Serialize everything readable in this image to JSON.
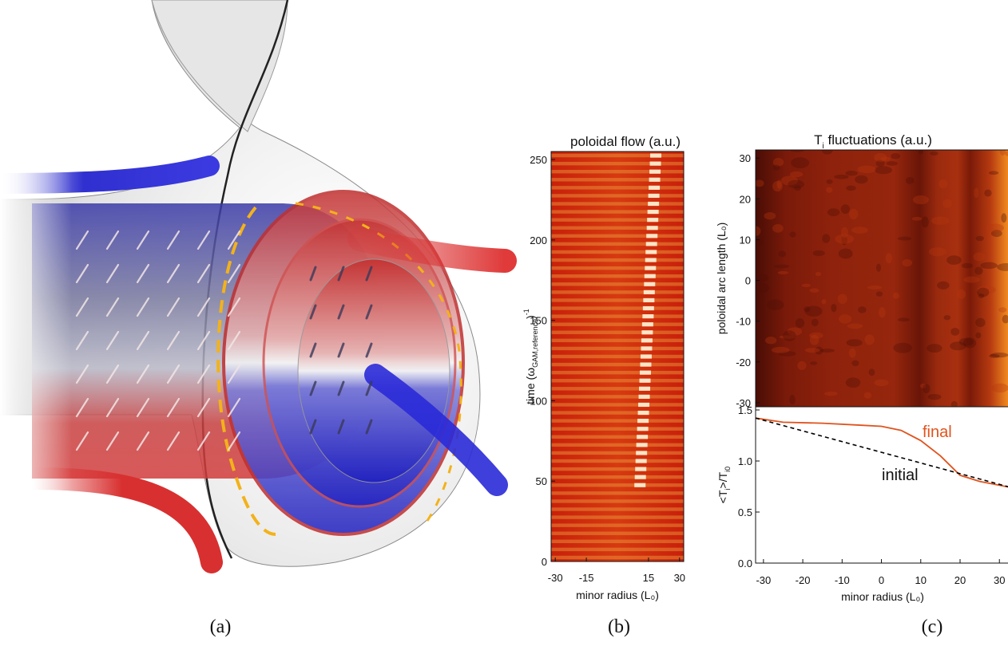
{
  "captions": {
    "a": "(a)",
    "b": "(b)",
    "c": "(c)"
  },
  "chart_data": [
    {
      "type": "heatmap",
      "title": "poloidal flow (a.u.)",
      "xlabel": "minor radius (L₀)",
      "ylabel": "time (ω",
      "ylabel_sub": "GAM,reference",
      "ylabel_tail": ")",
      "ylabel_sup": "-1",
      "xlim": [
        -32,
        32
      ],
      "ylim": [
        0,
        255
      ],
      "xticks": [
        -30,
        -15,
        15,
        30
      ],
      "yticks": [
        0,
        50,
        100,
        150,
        200,
        250
      ],
      "stripe_period": 5
    },
    {
      "type": "heatmap",
      "title": "T",
      "title_sub": "i",
      "title_tail": " fluctuations (a.u.)",
      "ylabel": "poloidal arc length (L₀)",
      "xlim": [
        -32,
        33
      ],
      "ylim": [
        -31,
        32
      ],
      "yticks": [
        30,
        20,
        10,
        0,
        -10,
        -20,
        -30
      ]
    },
    {
      "type": "line",
      "ylabel": "<T",
      "ylabel_sub1": "i",
      "ylabel_mid": ">/T",
      "ylabel_sub2": "i0",
      "xlabel": "minor radius (L₀)",
      "xlim": [
        -32,
        33
      ],
      "ylim": [
        0,
        1.5
      ],
      "xticks": [
        -30,
        -20,
        -10,
        0,
        10,
        20,
        30
      ],
      "xtick_labels": [
        "-30",
        "-20",
        "-10",
        "0",
        "10",
        "20",
        "30"
      ],
      "yticks": [
        0,
        0.5,
        1.0,
        1.5
      ],
      "ytick_labels": [
        "0.0",
        "0.5",
        "1.0",
        "1.5"
      ],
      "series": [
        {
          "name": "final",
          "color": "#e0531d",
          "x": [
            -32,
            -25,
            -15,
            -5,
            0,
            5,
            10,
            15,
            20,
            25,
            33
          ],
          "y": [
            1.42,
            1.38,
            1.37,
            1.35,
            1.34,
            1.3,
            1.2,
            1.05,
            0.86,
            0.8,
            0.74
          ]
        },
        {
          "name": "initial",
          "color": "#000000",
          "dash": true,
          "x": [
            -32,
            33
          ],
          "y": [
            1.42,
            0.74
          ]
        }
      ]
    }
  ]
}
